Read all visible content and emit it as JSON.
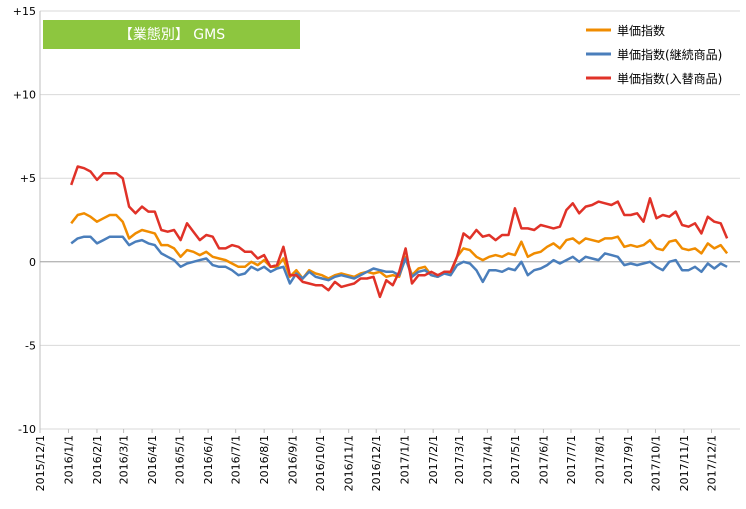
{
  "chart_data": {
    "type": "line",
    "title": "【業態別】 GMS",
    "y_range": [
      -10,
      15
    ],
    "y_ticks": [
      "+15",
      "+10",
      "+5",
      "0",
      "-5",
      "-10"
    ],
    "y_tick_values": [
      15,
      10,
      5,
      0,
      -5,
      -10
    ],
    "x_ticks": [
      "2015/12/1",
      "2016/1/1",
      "2016/2/1",
      "2016/3/1",
      "2016/4/1",
      "2016/5/1",
      "2016/6/1",
      "2016/7/1",
      "2016/8/1",
      "2016/9/1",
      "2016/10/1",
      "2016/11/1",
      "2016/12/1",
      "2017/1/1",
      "2017/2/1",
      "2017/3/1",
      "2017/4/1",
      "2017/5/1",
      "2017/6/1",
      "2017/7/1",
      "2017/8/1",
      "2017/9/1",
      "2017/10/1",
      "2017/11/1",
      "2017/12/1"
    ],
    "grid": "horizontal",
    "legend_position": "top-right",
    "x_start_date": "2016-01-04",
    "x_interval_days": 7,
    "series": [
      {
        "name": "単価指数",
        "color": "#f08c00",
        "values": [
          2.3,
          2.8,
          2.9,
          2.7,
          2.4,
          2.6,
          2.8,
          2.8,
          2.4,
          1.4,
          1.7,
          1.9,
          1.8,
          1.7,
          1.0,
          1.0,
          0.8,
          0.3,
          0.7,
          0.6,
          0.4,
          0.6,
          0.3,
          0.2,
          0.1,
          -0.1,
          -0.3,
          -0.3,
          0.0,
          -0.2,
          0.1,
          -0.3,
          -0.3,
          0.2,
          -0.9,
          -0.5,
          -1.0,
          -0.5,
          -0.7,
          -0.8,
          -1.0,
          -0.8,
          -0.7,
          -0.8,
          -0.9,
          -0.7,
          -0.6,
          -0.7,
          -0.6,
          -0.9,
          -0.8,
          -0.9,
          0.3,
          -0.8,
          -0.4,
          -0.3,
          -0.8,
          -0.9,
          -0.6,
          -0.7,
          0.3,
          0.8,
          0.7,
          0.3,
          0.1,
          0.3,
          0.4,
          0.3,
          0.5,
          0.4,
          1.2,
          0.3,
          0.5,
          0.6,
          0.9,
          1.1,
          0.8,
          1.3,
          1.4,
          1.1,
          1.4,
          1.3,
          1.2,
          1.4,
          1.4,
          1.5,
          0.9,
          1.0,
          0.9,
          1.0,
          1.3,
          0.8,
          0.7,
          1.2,
          1.3,
          0.8,
          0.7,
          0.8,
          0.5,
          1.1,
          0.8,
          1.0,
          0.5
        ]
      },
      {
        "name": "単価指数(継続商品)",
        "color": "#4a7ebb",
        "values": [
          1.1,
          1.4,
          1.5,
          1.5,
          1.1,
          1.3,
          1.5,
          1.5,
          1.5,
          1.0,
          1.2,
          1.3,
          1.1,
          1.0,
          0.5,
          0.3,
          0.1,
          -0.3,
          -0.1,
          0.0,
          0.1,
          0.2,
          -0.2,
          -0.3,
          -0.3,
          -0.5,
          -0.8,
          -0.7,
          -0.3,
          -0.5,
          -0.3,
          -0.6,
          -0.4,
          -0.3,
          -1.3,
          -0.7,
          -1.0,
          -0.6,
          -0.9,
          -1.0,
          -1.1,
          -0.9,
          -0.8,
          -0.9,
          -1.0,
          -0.8,
          -0.6,
          -0.4,
          -0.5,
          -0.6,
          -0.6,
          -0.8,
          0.2,
          -0.9,
          -0.6,
          -0.5,
          -0.8,
          -0.9,
          -0.7,
          -0.8,
          -0.2,
          0.0,
          -0.1,
          -0.5,
          -1.2,
          -0.5,
          -0.5,
          -0.6,
          -0.4,
          -0.5,
          0.0,
          -0.8,
          -0.5,
          -0.4,
          -0.2,
          0.1,
          -0.1,
          0.1,
          0.3,
          0.0,
          0.3,
          0.2,
          0.1,
          0.5,
          0.4,
          0.3,
          -0.2,
          -0.1,
          -0.2,
          -0.1,
          0.0,
          -0.3,
          -0.5,
          0.0,
          0.1,
          -0.5,
          -0.5,
          -0.3,
          -0.6,
          -0.1,
          -0.4,
          -0.1,
          -0.3
        ]
      },
      {
        "name": "単価指数(入替商品)",
        "color": "#e03228",
        "values": [
          4.6,
          5.7,
          5.6,
          5.4,
          4.9,
          5.3,
          5.3,
          5.3,
          5.0,
          3.3,
          2.9,
          3.3,
          3.0,
          3.0,
          1.9,
          1.8,
          1.9,
          1.3,
          2.3,
          1.8,
          1.3,
          1.6,
          1.5,
          0.8,
          0.8,
          1.0,
          0.9,
          0.6,
          0.6,
          0.2,
          0.4,
          -0.3,
          -0.2,
          0.9,
          -0.8,
          -0.8,
          -1.2,
          -1.3,
          -1.4,
          -1.4,
          -1.7,
          -1.2,
          -1.5,
          -1.4,
          -1.3,
          -1.0,
          -1.0,
          -0.9,
          -2.1,
          -1.1,
          -1.4,
          -0.6,
          0.8,
          -1.3,
          -0.8,
          -0.8,
          -0.6,
          -0.8,
          -0.6,
          -0.6,
          0.3,
          1.7,
          1.4,
          1.9,
          1.5,
          1.6,
          1.3,
          1.6,
          1.6,
          3.2,
          2.0,
          2.0,
          1.9,
          2.2,
          2.1,
          2.0,
          2.1,
          3.1,
          3.5,
          2.9,
          3.3,
          3.4,
          3.6,
          3.5,
          3.4,
          3.6,
          2.8,
          2.8,
          2.9,
          2.4,
          3.8,
          2.6,
          2.8,
          2.7,
          3.0,
          2.2,
          2.1,
          2.3,
          1.7,
          2.7,
          2.4,
          2.3,
          1.4
        ]
      }
    ]
  }
}
